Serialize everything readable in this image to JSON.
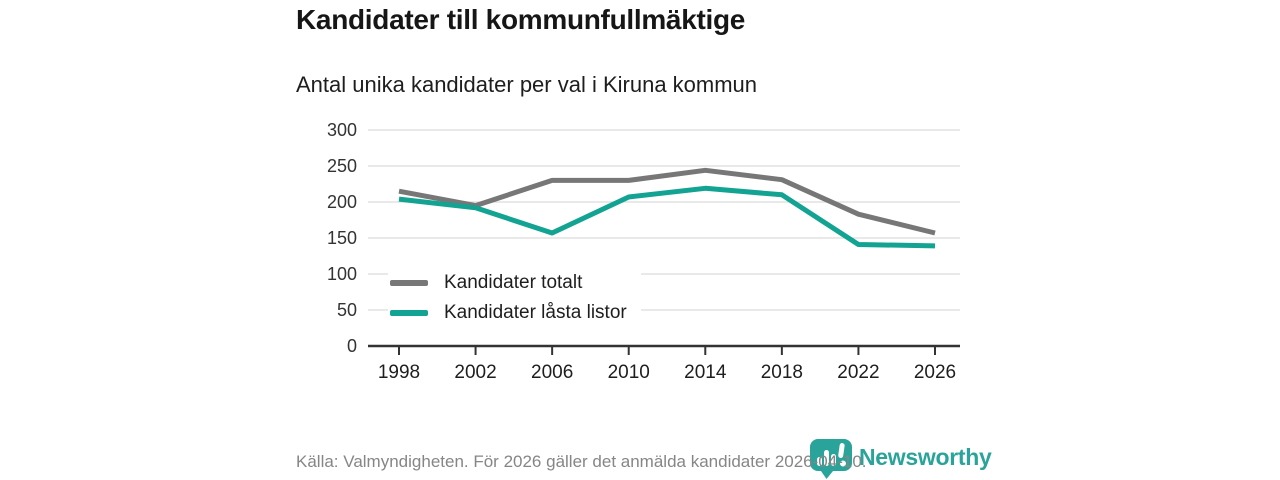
{
  "title": "Kandidater till kommunfullmäktige",
  "subtitle": "Antal unika kandidater per val i Kiruna kommun",
  "source": "Källa: Valmyndigheten. För 2026 gäller det anmälda kandidater 2026-04-10.",
  "brand": {
    "name": "Newsworthy",
    "icon": "newsworthy-speech-bubble-chart-icon",
    "color": "#2aa49a"
  },
  "colors": {
    "series_total": "#777777",
    "series_locked": "#12a392",
    "grid": "#dcdcdc",
    "axis": "#333333",
    "axis_label": "#333333",
    "tick_label": "#1e1e1e",
    "text": "#1e1e1e",
    "muted": "#868686",
    "background": "#ffffff"
  },
  "chart_data": {
    "type": "line",
    "x": [
      1998,
      2002,
      2006,
      2010,
      2014,
      2018,
      2022,
      2026
    ],
    "series": [
      {
        "name": "Kandidater totalt",
        "color": "#777777",
        "values": [
          215,
          195,
          230,
          230,
          244,
          231,
          183,
          157
        ]
      },
      {
        "name": "Kandidater låsta listor",
        "color": "#12a392",
        "values": [
          204,
          192,
          157,
          207,
          219,
          210,
          141,
          139
        ]
      }
    ],
    "title": "Kandidater till kommunfullmäktige",
    "subtitle": "Antal unika kandidater per val i Kiruna kommun",
    "xlabel": "",
    "ylabel": "",
    "ylim": [
      0,
      300
    ],
    "yticks": [
      0,
      50,
      100,
      150,
      200,
      250,
      300
    ],
    "grid": "horizontal",
    "legend_position": "inside-bottom-left"
  }
}
